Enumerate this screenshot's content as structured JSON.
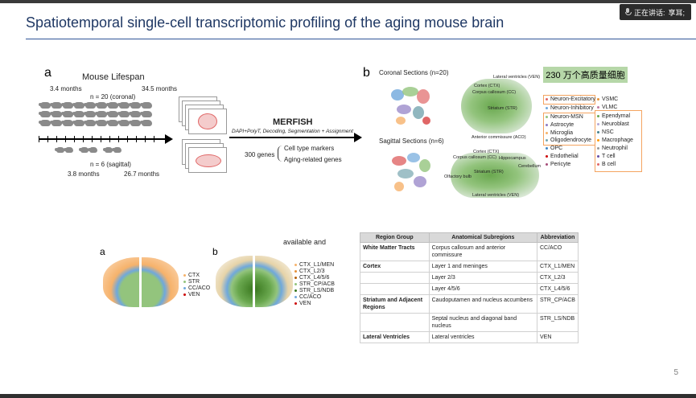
{
  "meeting": {
    "speaker_label": "正在讲话:",
    "speaker_name": "享耳;"
  },
  "slide": {
    "title": "Spatiotemporal single-cell transcriptomic profiling of the aging mouse brain",
    "page_number": "5"
  },
  "figure_top": {
    "panel_a": {
      "label": "a",
      "heading": "Mouse Lifespan",
      "age_top_left": "3.4 months",
      "age_top_right": "34.5 months",
      "n_coronal": "n = 20 (coronal)",
      "n_sagittal": "n = 6 (sagittal)",
      "age_bottom_left": "3.8 months",
      "age_bottom_right": "26.7 months",
      "merfish": "MERFISH",
      "pipeline": "DAPI+PolyT, Decoding, Segmentation + Assignment",
      "genes": "300 genes",
      "gene_set_1": "Cell type markers",
      "gene_set_2": "Aging-related genes"
    },
    "panel_b": {
      "label": "b",
      "coronal_title": "Coronal Sections (n=20)",
      "sagittal_title": "Sagittal Sections (n=6)",
      "highlight": "230 万个高质量细胞",
      "coronal_labels": [
        "Lateral ventricles (VEN)",
        "Cortex (CTX)",
        "Corpus callosum (CC)",
        "Striatum (STR)",
        "Anterior commissure (ACO)"
      ],
      "sagittal_labels": [
        "Cortex (CTX)",
        "Corpus callosum (CC)",
        "Olfactory bulb",
        "Striatum (STR)",
        "Hippocampus",
        "Cerebellum",
        "Lateral ventricles (VEN)"
      ],
      "cell_types_left": [
        {
          "name": "Neuron-Excitatory",
          "color": "#e06666"
        },
        {
          "name": "Neuron-Inhibitory",
          "color": "#6fa8dc"
        },
        {
          "name": "Neuron-MSN",
          "color": "#93c47d"
        },
        {
          "name": "Astrocyte",
          "color": "#8e7cc3"
        },
        {
          "name": "Microglia",
          "color": "#f6b26b"
        },
        {
          "name": "Oligodendrocyte",
          "color": "#76a5af"
        },
        {
          "name": "OPC",
          "color": "#3d85c6"
        },
        {
          "name": "Endothelial",
          "color": "#cc0000"
        },
        {
          "name": "Pericyte",
          "color": "#a64d79"
        }
      ],
      "cell_types_right": [
        {
          "name": "VSMC",
          "color": "#e69138"
        },
        {
          "name": "VLMC",
          "color": "#c27ba0"
        },
        {
          "name": "Ependymal",
          "color": "#6aa84f"
        },
        {
          "name": "Neuroblast",
          "color": "#b4a7d6"
        },
        {
          "name": "NSC",
          "color": "#45818e"
        },
        {
          "name": "Macrophage",
          "color": "#ff9900"
        },
        {
          "name": "Neutrophil",
          "color": "#999999"
        },
        {
          "name": "T cell",
          "color": "#674ea7"
        },
        {
          "name": "B cell",
          "color": "#e06666"
        }
      ]
    }
  },
  "figure_bottom": {
    "a_label": "a",
    "b_label": "b",
    "cropped_text": "available and",
    "legend_a": [
      {
        "name": "CTX",
        "color": "#f6b26b"
      },
      {
        "name": "STR",
        "color": "#93c47d"
      },
      {
        "name": "CC/ACO",
        "color": "#6fa8dc"
      },
      {
        "name": "VEN",
        "color": "#cc0000"
      }
    ],
    "legend_b": [
      {
        "name": "CTX_L1/MEN",
        "color": "#f6b26b"
      },
      {
        "name": "CTX_L2/3",
        "color": "#e69138"
      },
      {
        "name": "CTX_L4/5/6",
        "color": "#b45f06"
      },
      {
        "name": "STR_CP/ACB",
        "color": "#93c47d"
      },
      {
        "name": "STR_LS/NDB",
        "color": "#38761d"
      },
      {
        "name": "CC/ACO",
        "color": "#6fa8dc"
      },
      {
        "name": "VEN",
        "color": "#cc0000"
      }
    ]
  },
  "region_table": {
    "headers": [
      "Region Group",
      "Anatomical Subregions",
      "Abbreviation"
    ],
    "rows": [
      {
        "group": "White Matter Tracts",
        "subregion": "Corpus callosum and anterior commissure",
        "abbr": "CC/ACO"
      },
      {
        "group": "Cortex",
        "subregion": "Layer 1 and meninges",
        "abbr": "CTX_L1/MEN"
      },
      {
        "group": "",
        "subregion": "Layer 2/3",
        "abbr": "CTX_L2/3"
      },
      {
        "group": "",
        "subregion": "Layer 4/5/6",
        "abbr": "CTX_L4/5/6"
      },
      {
        "group": "Striatum and Adjacent Regions",
        "subregion": "Caudoputamen and nucleus accumbens",
        "abbr": "STR_CP/ACB"
      },
      {
        "group": "",
        "subregion": "Septal nucleus and diagonal band nucleus",
        "abbr": "STR_LS/NDB"
      },
      {
        "group": "Lateral Ventricles",
        "subregion": "Lateral ventricles",
        "abbr": "VEN"
      }
    ]
  }
}
